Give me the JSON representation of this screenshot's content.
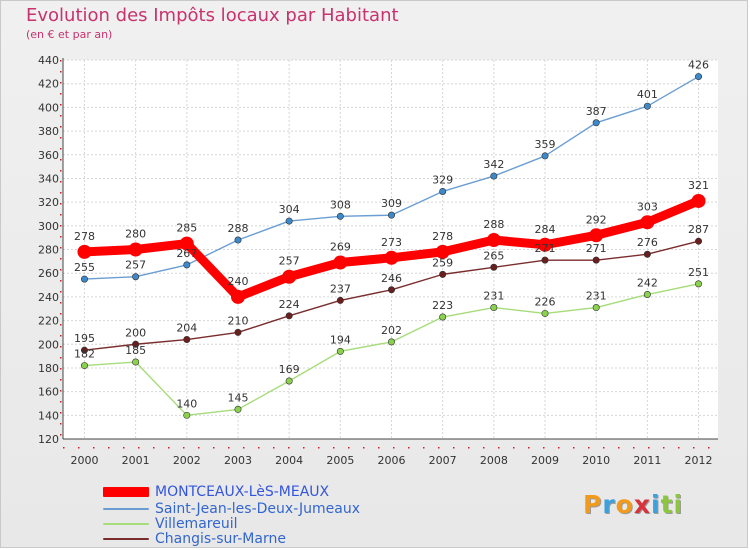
{
  "chart_data": {
    "type": "line",
    "title": "Evolution des Impôts locaux par Habitant",
    "subtitle": "(en € et par an)",
    "xlabel": "",
    "ylabel": "",
    "categories": [
      "2000",
      "2001",
      "2002",
      "2003",
      "2004",
      "2005",
      "2006",
      "2007",
      "2008",
      "2009",
      "2010",
      "2011",
      "2012"
    ],
    "ylim": [
      120,
      440
    ],
    "yticks": [
      120,
      140,
      160,
      180,
      200,
      220,
      240,
      260,
      280,
      300,
      320,
      340,
      360,
      380,
      400,
      420,
      440
    ],
    "grid": true,
    "legend_position": "bottom-left",
    "series": [
      {
        "name": "MONTCEAUX-LèS-MEAUX",
        "color": "#ff0000",
        "values": [
          278,
          280,
          285,
          240,
          257,
          269,
          273,
          278,
          288,
          284,
          292,
          303,
          321
        ]
      },
      {
        "name": "Saint-Jean-les-Deux-Jumeaux",
        "color": "#6a9ed2",
        "marker_color": "#3c88c8",
        "values": [
          255,
          257,
          267,
          288,
          304,
          308,
          309,
          329,
          342,
          359,
          387,
          401,
          426
        ]
      },
      {
        "name": "Villemareuil",
        "color": "#a6dc7a",
        "marker_color": "#8ad24e",
        "values": [
          182,
          185,
          140,
          145,
          169,
          194,
          202,
          223,
          231,
          226,
          231,
          242,
          251
        ]
      },
      {
        "name": "Changis-sur-Marne",
        "color": "#7a2d2d",
        "marker_color": "#6a1f1f",
        "values": [
          195,
          200,
          204,
          210,
          224,
          237,
          246,
          259,
          265,
          271,
          271,
          276,
          287
        ]
      }
    ]
  },
  "logo": {
    "letters": [
      {
        "ch": "P",
        "color": "#f29a1c"
      },
      {
        "ch": "r",
        "color": "#3ba0dc"
      },
      {
        "ch": "o",
        "color": "#f29a1c"
      },
      {
        "ch": "x",
        "color": "#d8323c"
      },
      {
        "ch": "i",
        "color": "#3ba0dc"
      },
      {
        "ch": "t",
        "color": "#8cc63e"
      },
      {
        "ch": "i",
        "color": "#8cc63e"
      }
    ]
  }
}
